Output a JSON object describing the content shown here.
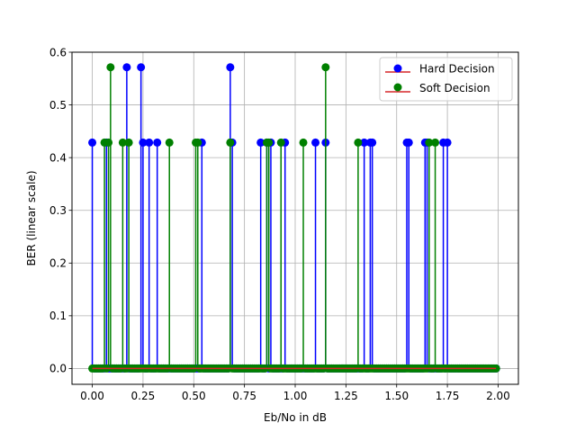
{
  "chart_data": {
    "type": "stem",
    "xlabel": "Eb/No in dB",
    "ylabel": "BER (linear scale)",
    "xlim": [
      -0.1,
      2.1
    ],
    "ylim": [
      -0.03,
      0.6
    ],
    "x_ticks": [
      "0.00",
      "0.25",
      "0.50",
      "0.75",
      "1.00",
      "1.25",
      "1.50",
      "1.75",
      "2.00"
    ],
    "y_ticks": [
      "0.0",
      "0.1",
      "0.2",
      "0.3",
      "0.4",
      "0.5",
      "0.6"
    ],
    "grid": true,
    "legend_position": "top-right",
    "baseline_color": "#d62728",
    "x_range": [
      0,
      1.99
    ],
    "x_step": 0.01,
    "series": [
      {
        "name": "Hard Decision",
        "color": "#0000ff",
        "default_value": 0,
        "nonzero_points": [
          [
            0.0,
            0.4286
          ],
          [
            0.07,
            0.4286
          ],
          [
            0.17,
            0.5714
          ],
          [
            0.24,
            0.5714
          ],
          [
            0.25,
            0.4286
          ],
          [
            0.28,
            0.4286
          ],
          [
            0.32,
            0.4286
          ],
          [
            0.54,
            0.4286
          ],
          [
            0.68,
            0.5714
          ],
          [
            0.69,
            0.4286
          ],
          [
            0.83,
            0.4286
          ],
          [
            0.86,
            0.4286
          ],
          [
            0.88,
            0.4286
          ],
          [
            0.95,
            0.4286
          ],
          [
            1.1,
            0.4286
          ],
          [
            1.15,
            0.4286
          ],
          [
            1.34,
            0.4286
          ],
          [
            1.37,
            0.4286
          ],
          [
            1.38,
            0.4286
          ],
          [
            1.55,
            0.4286
          ],
          [
            1.56,
            0.4286
          ],
          [
            1.64,
            0.4286
          ],
          [
            1.65,
            0.4286
          ],
          [
            1.73,
            0.4286
          ],
          [
            1.75,
            0.4286
          ]
        ]
      },
      {
        "name": "Soft Decision",
        "color": "#008000",
        "default_value": 0,
        "nonzero_points": [
          [
            0.06,
            0.4286
          ],
          [
            0.08,
            0.4286
          ],
          [
            0.09,
            0.5714
          ],
          [
            0.15,
            0.4286
          ],
          [
            0.18,
            0.4286
          ],
          [
            0.38,
            0.4286
          ],
          [
            0.51,
            0.4286
          ],
          [
            0.52,
            0.4286
          ],
          [
            0.68,
            0.4286
          ],
          [
            0.86,
            0.4286
          ],
          [
            0.87,
            0.4286
          ],
          [
            0.93,
            0.4286
          ],
          [
            1.04,
            0.4286
          ],
          [
            1.15,
            0.5714
          ],
          [
            1.31,
            0.4286
          ],
          [
            1.66,
            0.4286
          ],
          [
            1.69,
            0.4286
          ]
        ]
      }
    ]
  }
}
